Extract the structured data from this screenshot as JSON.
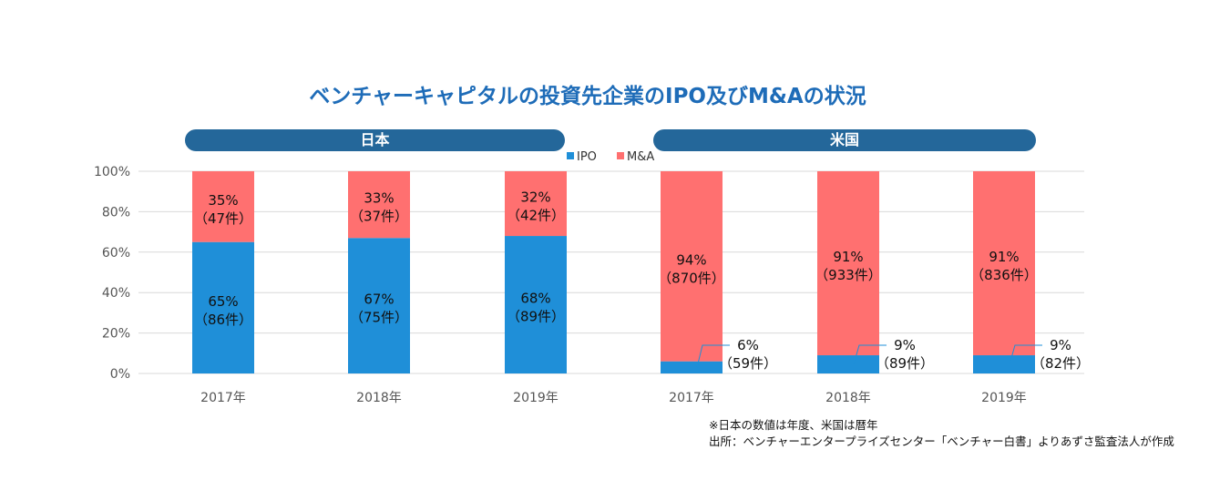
{
  "title": "ベンチャーキャピタルの投資先企業のIPO及びM&Aの状況",
  "groups": [
    "日本",
    "米国"
  ],
  "notes": [
    "※日本の数値は年度、米国は暦年",
    "出所：ベンチャーエンタープライズセンター「ベンチャー白書」よりあずさ監査法人が作成"
  ],
  "colors": {
    "ipo": "#1f8fd8",
    "mna": "#ff7070",
    "pill": "#24679a",
    "title": "#1e6cb8"
  },
  "chart_data": {
    "type": "bar",
    "stacked": true,
    "title": "ベンチャーキャピタルの投資先企業のIPO及びM&Aの状況",
    "categories": [
      "2017年",
      "2018年",
      "2019年",
      "2017年",
      "2018年",
      "2019年"
    ],
    "groups": [
      "日本",
      "日本",
      "日本",
      "米国",
      "米国",
      "米国"
    ],
    "series": [
      {
        "name": "IPO",
        "values": [
          65,
          67,
          68,
          6,
          9,
          9
        ],
        "labels": [
          "65%",
          "67%",
          "68%",
          "6%",
          "9%",
          "9%"
        ],
        "counts": [
          "（86件）",
          "（75件）",
          "（89件）",
          "（59件）",
          "（89件）",
          "（82件）"
        ]
      },
      {
        "name": "M&A",
        "values": [
          35,
          33,
          32,
          94,
          91,
          91
        ],
        "labels": [
          "35%",
          "33%",
          "32%",
          "94%",
          "91%",
          "91%"
        ],
        "counts": [
          "（47件）",
          "（37件）",
          "（42件）",
          "（870件）",
          "（933件）",
          "（836件）"
        ]
      }
    ],
    "yticks": [
      "0%",
      "20%",
      "40%",
      "60%",
      "80%",
      "100%"
    ],
    "ylim": [
      0,
      100
    ],
    "legend": "top-center",
    "grid": true
  }
}
